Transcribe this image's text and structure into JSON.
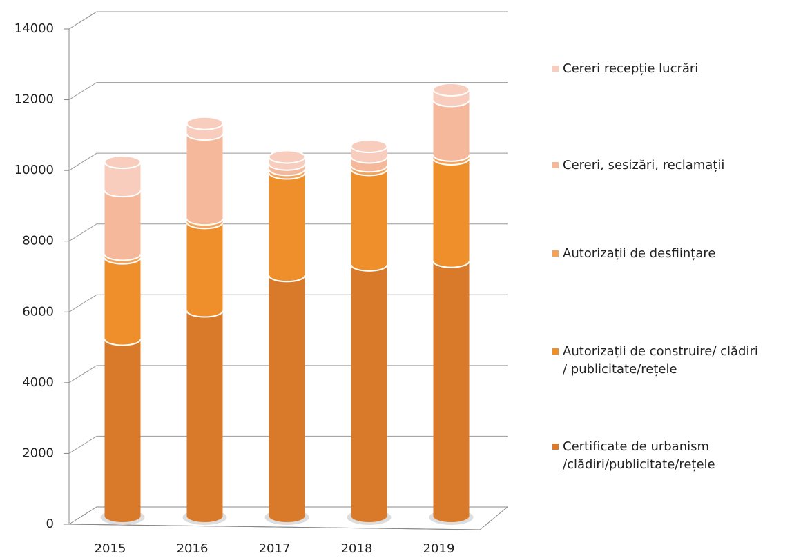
{
  "chart_data": {
    "type": "bar",
    "stacked": true,
    "three_d": true,
    "categories": [
      "2015",
      "2016",
      "2017",
      "2018",
      "2019"
    ],
    "series": [
      {
        "name": "Certificate de urbanism\n/clădiri/publicitate/rețele",
        "color": "#d97a2b",
        "values": [
          5000,
          5800,
          6800,
          7100,
          7200
        ]
      },
      {
        "name": "Autorizații de construire/ clădiri\n/ publicitate/rețele",
        "color": "#ee8f2c",
        "values": [
          2300,
          2500,
          2900,
          2700,
          2900
        ]
      },
      {
        "name": "Autorizații de desființare",
        "color": "#f4a45a",
        "values": [
          100,
          100,
          100,
          100,
          100
        ]
      },
      {
        "name": "Cereri, sesizări, reclamații",
        "color": "#f6b89a",
        "values": [
          1800,
          2400,
          150,
          250,
          1550
        ]
      },
      {
        "name": "Cereri recepție lucrări",
        "color": "#f8cdbd",
        "values": [
          800,
          300,
          200,
          300,
          300
        ]
      }
    ],
    "ylim": [
      0,
      14000
    ],
    "yticks": [
      0,
      2000,
      4000,
      6000,
      8000,
      10000,
      12000,
      14000
    ],
    "grid": true
  }
}
